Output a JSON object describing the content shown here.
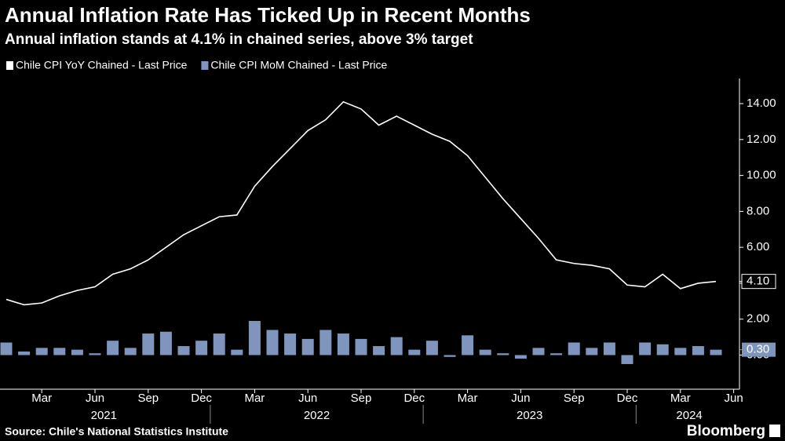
{
  "chart_data": {
    "type": "line_bar",
    "title": "Annual Inflation Rate Has Ticked Up in Recent Months",
    "subtitle": "Annual inflation stands at 4.1% in chained series, above 3% target",
    "source": "Source: Chile's National Statistics Institute",
    "brand": "Bloomberg",
    "categories": [
      "2021-01",
      "2021-02",
      "2021-03",
      "2021-04",
      "2021-05",
      "2021-06",
      "2021-07",
      "2021-08",
      "2021-09",
      "2021-10",
      "2021-11",
      "2021-12",
      "2022-01",
      "2022-02",
      "2022-03",
      "2022-04",
      "2022-05",
      "2022-06",
      "2022-07",
      "2022-08",
      "2022-09",
      "2022-10",
      "2022-11",
      "2022-12",
      "2023-01",
      "2023-02",
      "2023-03",
      "2023-04",
      "2023-05",
      "2023-06",
      "2023-07",
      "2023-08",
      "2023-09",
      "2023-10",
      "2023-11",
      "2023-12",
      "2024-01",
      "2024-02",
      "2024-03",
      "2024-04",
      "2024-05"
    ],
    "series": [
      {
        "name": "Chile CPI YoY Chained - Last Price",
        "type": "line",
        "color": "#ffffff",
        "last_label": "4.10",
        "values": [
          3.1,
          2.8,
          2.9,
          3.3,
          3.6,
          3.8,
          4.5,
          4.8,
          5.3,
          6.0,
          6.7,
          7.2,
          7.7,
          7.8,
          9.4,
          10.5,
          11.5,
          12.5,
          13.1,
          14.1,
          13.7,
          12.8,
          13.3,
          12.8,
          12.3,
          11.9,
          11.1,
          9.9,
          8.7,
          7.6,
          6.5,
          5.3,
          5.1,
          5.0,
          4.8,
          3.9,
          3.8,
          4.5,
          3.7,
          4.0,
          4.1
        ]
      },
      {
        "name": "Chile CPI MoM Chained - Last Price",
        "type": "bar",
        "color": "#7f95bd",
        "last_label": "0.30",
        "values": [
          0.7,
          0.2,
          0.4,
          0.4,
          0.3,
          0.1,
          0.8,
          0.4,
          1.2,
          1.3,
          0.5,
          0.8,
          1.2,
          0.3,
          1.9,
          1.4,
          1.2,
          0.9,
          1.4,
          1.2,
          0.9,
          0.5,
          1.0,
          0.3,
          0.8,
          -0.1,
          1.1,
          0.3,
          0.1,
          -0.2,
          0.4,
          0.1,
          0.7,
          0.4,
          0.7,
          -0.5,
          0.7,
          0.6,
          0.4,
          0.5,
          0.3
        ]
      }
    ],
    "ylim": [
      -1.9,
      15.4
    ],
    "yticks": [
      {
        "value": 0,
        "label": "0.00"
      },
      {
        "value": 2,
        "label": "2.00"
      },
      {
        "value": 4,
        "label": "4.00"
      },
      {
        "value": 6,
        "label": "6.00"
      },
      {
        "value": 8,
        "label": "8.00"
      },
      {
        "value": 10,
        "label": "10.00"
      },
      {
        "value": 12,
        "label": "12.00"
      },
      {
        "value": 14,
        "label": "14.00"
      }
    ],
    "xticks": [
      {
        "value": "2021-03",
        "label": "Mar"
      },
      {
        "value": "2021-06",
        "label": "Jun"
      },
      {
        "value": "2021-09",
        "label": "Sep"
      },
      {
        "value": "2021-12",
        "label": "Dec"
      },
      {
        "value": "2022-03",
        "label": "Mar"
      },
      {
        "value": "2022-06",
        "label": "Jun"
      },
      {
        "value": "2022-09",
        "label": "Sep"
      },
      {
        "value": "2022-12",
        "label": "Dec"
      },
      {
        "value": "2023-03",
        "label": "Mar"
      },
      {
        "value": "2023-06",
        "label": "Jun"
      },
      {
        "value": "2023-09",
        "label": "Sep"
      },
      {
        "value": "2023-12",
        "label": "Dec"
      },
      {
        "value": "2024-03",
        "label": "Mar"
      },
      {
        "value": "2024-06",
        "label": "Jun"
      }
    ],
    "year_labels": [
      "2021",
      "2022",
      "2023",
      "2024"
    ]
  }
}
